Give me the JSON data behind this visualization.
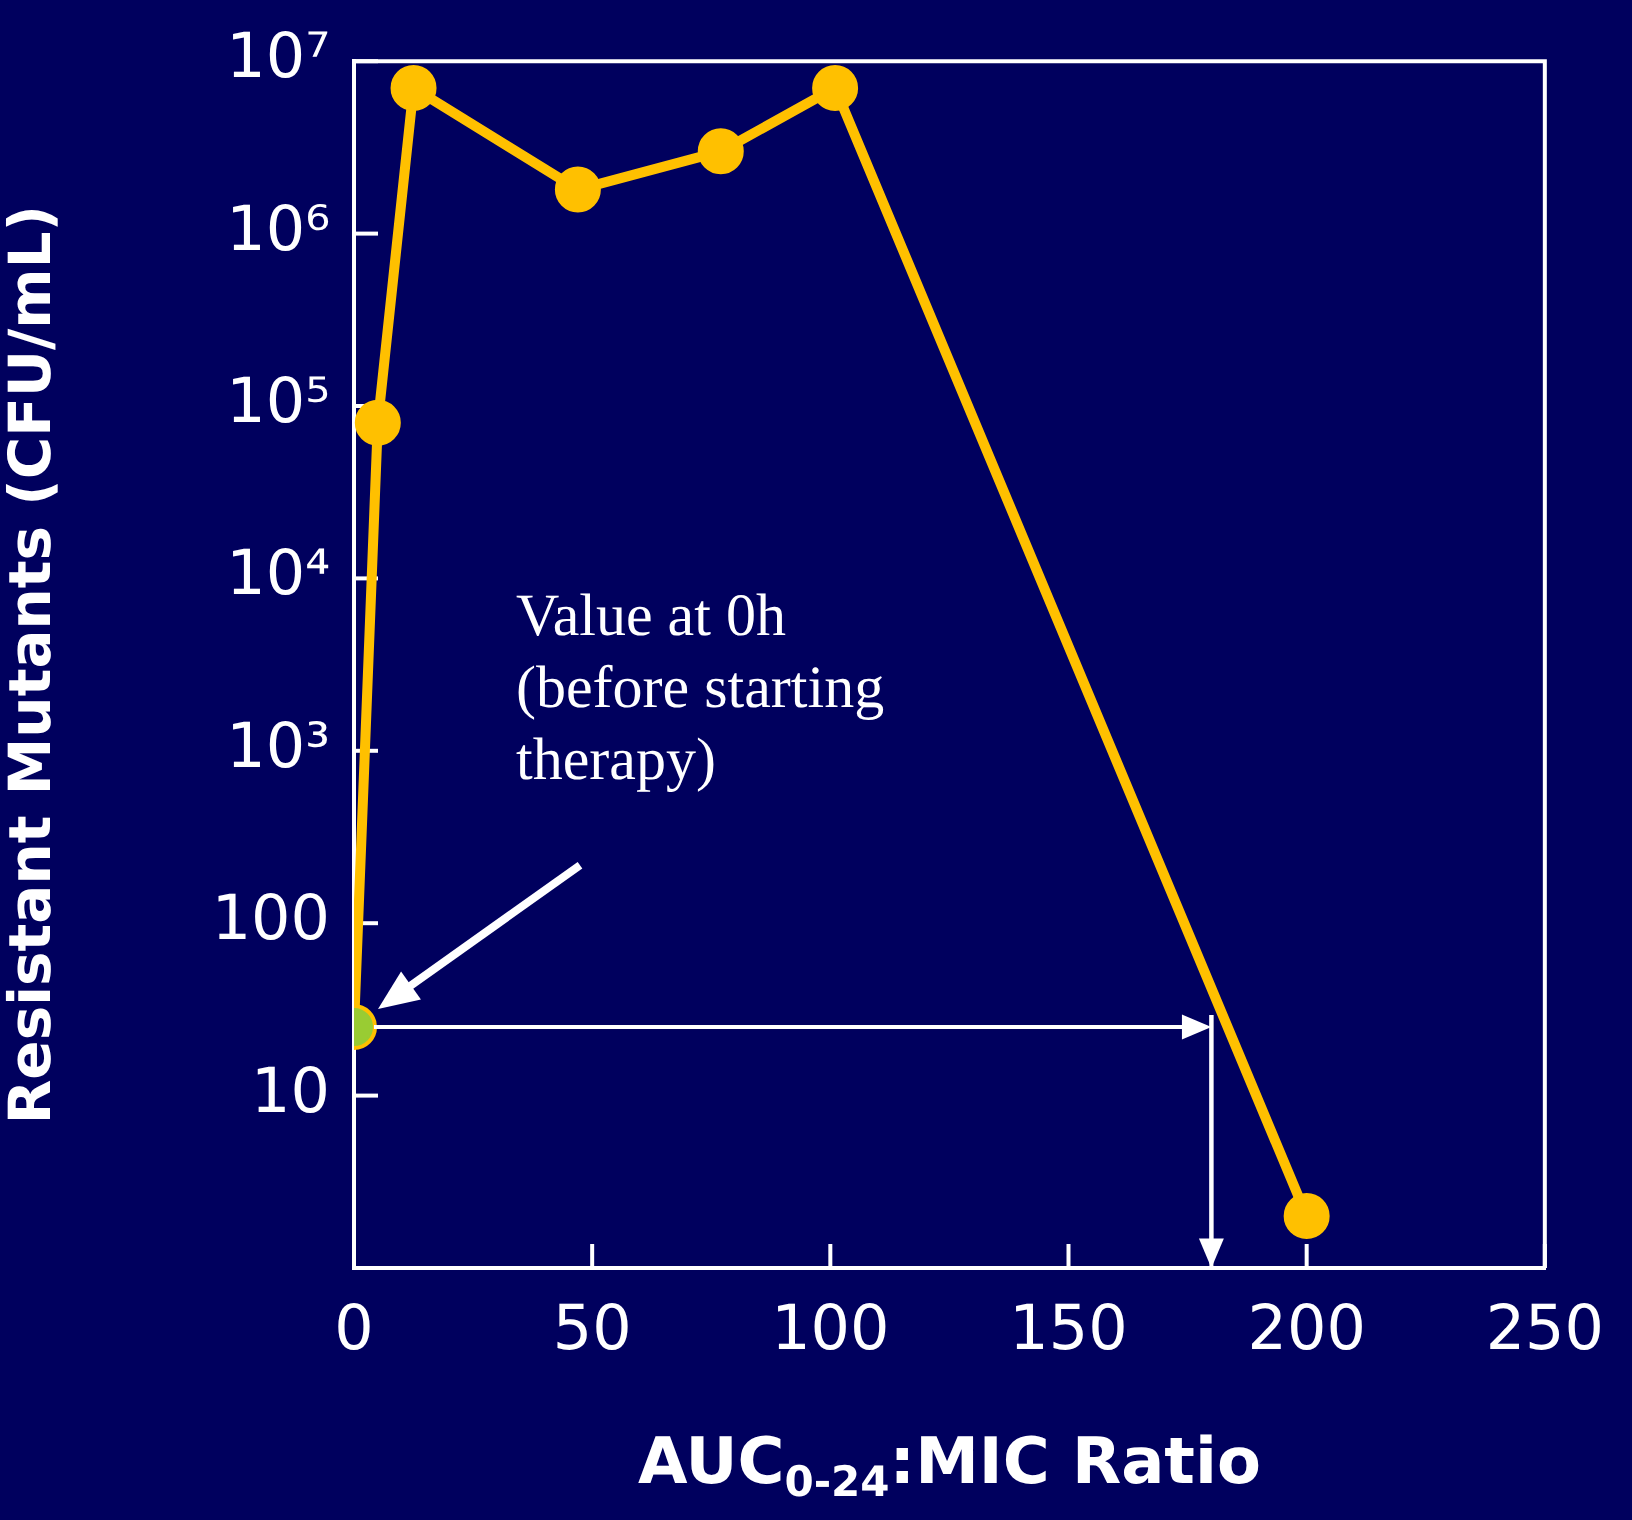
{
  "chart_data": {
    "type": "line",
    "xlabel": "AUC$_{0-24}$:MIC Ratio",
    "ylabel": "Resistant Mutants (CFU/mL)",
    "series": [
      {
        "color": "#ffc000",
        "x": [
          0,
          5,
          12.5,
          47,
          77,
          101,
          200
        ],
        "values": [
          25,
          80000,
          7000000,
          1800000,
          3000000,
          7000000,
          2
        ]
      },
      {
        "type": "scatter",
        "color": "#99cc33",
        "x": [
          0
        ],
        "values": [
          25
        ]
      }
    ],
    "log": "y",
    "xlim": [
      0,
      250
    ],
    "xticks": [
      0,
      50,
      100,
      150,
      200,
      250
    ],
    "ylim": [
      1,
      10000000
    ],
    "yticks": [
      {
        "value": 1,
        "label": null
      },
      10,
      100,
      {
        "value": 1000,
        "label": "10³"
      },
      {
        "value": 10000,
        "label": "10⁴"
      },
      {
        "value": 100000,
        "label": "10⁵"
      },
      {
        "value": 1000000,
        "label": "10⁶"
      },
      {
        "value": 10000000,
        "label": "10⁷"
      }
    ],
    "marker": "circle",
    "line_style": "solid",
    "grid": false,
    "legend": false,
    "annotations": [
      "Value at 0h (before starting therapy)"
    ],
    "ref_lines": [
      {
        "axis": "x",
        "value": 180
      }
    ]
  }
}
